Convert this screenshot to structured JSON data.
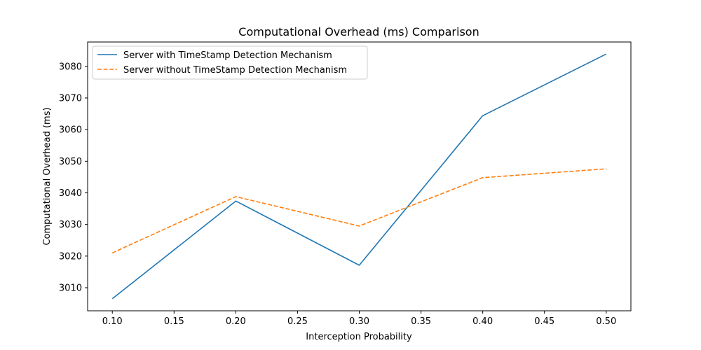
{
  "chart_data": {
    "type": "line",
    "title": "Computational Overhead (ms) Comparison",
    "xlabel": "Interception Probability",
    "ylabel": "Computational Overhead (ms)",
    "x": [
      0.1,
      0.2,
      0.3,
      0.4,
      0.5
    ],
    "xticks": [
      "0.10",
      "0.15",
      "0.20",
      "0.25",
      "0.30",
      "0.35",
      "0.40",
      "0.45",
      "0.50"
    ],
    "yticks": [
      "3010",
      "3020",
      "3030",
      "3040",
      "3050",
      "3060",
      "3070",
      "3080"
    ],
    "xlim": [
      0.08,
      0.52
    ],
    "ylim": [
      3002.7,
      3087.7
    ],
    "grid": false,
    "legend_position": "top-left",
    "series": [
      {
        "name": "Server with TimeStamp Detection Mechanism",
        "values": [
          3006.5,
          3037.4,
          3017.1,
          3064.4,
          3083.9
        ],
        "color": "#1f77b4",
        "style": "solid"
      },
      {
        "name": "Server without TimeStamp Detection Mechanism",
        "values": [
          3021.0,
          3038.8,
          3029.5,
          3044.8,
          3047.6
        ],
        "color": "#ff7f0e",
        "style": "dashed"
      }
    ]
  }
}
